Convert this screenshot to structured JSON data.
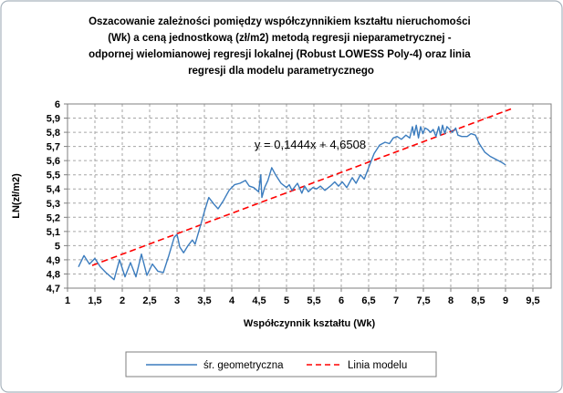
{
  "chart": {
    "title_lines": [
      "Oszacowanie zależności pomiędzy współczynnikiem kształtu nieruchomości",
      "(Wk) a ceną jednostkową (zł/m2) metodą regresji nieparametrycznej -",
      "odpornej wielomianowej regresji lokalnej (Robust LOWESS Poly-4) oraz linia",
      "regresji dla modelu parametrycznego"
    ],
    "annotation": {
      "text": "y = 0,1444x + 4,6508"
    },
    "x_axis": {
      "title": "Współczynnik kształtu (Wk)",
      "tick_values": [
        1,
        1.5,
        2,
        2.5,
        3,
        3.5,
        4,
        4.5,
        5,
        5.5,
        6,
        6.5,
        7,
        7.5,
        8,
        8.5,
        9,
        9.5
      ],
      "tick_labels": [
        "1",
        "1,5",
        "2",
        "2,5",
        "3",
        "3,5",
        "4",
        "4,5",
        "5",
        "5,5",
        "6",
        "6,5",
        "7",
        "7,5",
        "8",
        "8,5",
        "9",
        "9,5"
      ]
    },
    "y_axis": {
      "title": "LN(zł/m2)",
      "tick_values": [
        4.7,
        4.8,
        4.9,
        5.0,
        5.1,
        5.2,
        5.3,
        5.4,
        5.5,
        5.6,
        5.7,
        5.8,
        5.9,
        6.0
      ],
      "tick_labels": [
        "4,7",
        "4,8",
        "4,9",
        "5",
        "5,1",
        "5,2",
        "5,3",
        "5,4",
        "5,5",
        "5,6",
        "5,7",
        "5,8",
        "5,9",
        "6"
      ]
    },
    "legend": {
      "items": [
        {
          "label": "śr. geometryczna",
          "color": "#3B7CBE",
          "style": "solid"
        },
        {
          "label": "Linia modelu",
          "color": "#FF0000",
          "style": "dashed"
        }
      ],
      "position": "bottom-center"
    },
    "colors": {
      "series": "#3B7CBE",
      "model_line": "#FF0000",
      "gridline": "#A6A6A6",
      "plot_border": "#7F7F7F",
      "outer_border": "#A9B4BD",
      "background": "#FFFFFF"
    }
  },
  "chart_data": {
    "type": "line",
    "title": "Oszacowanie zależności pomiędzy współczynnikiem kształtu nieruchomości (Wk) a ceną jednostkową (zł/m2) metodą regresji nieparametrycznej - odpornej wielomianowej regresji lokalnej (Robust LOWESS Poly-4) oraz linia regresji dla modelu parametrycznego",
    "xlabel": "Współczynnik kształtu (Wk)",
    "ylabel": "LN(zł/m2)",
    "xlim": [
      1,
      9.85
    ],
    "ylim": [
      4.7,
      6.0
    ],
    "grid": true,
    "legend_position": "bottom",
    "annotation": "y = 0,1444x + 4,6508",
    "series": [
      {
        "name": "śr. geometryczna",
        "type": "noisy-line",
        "x": [
          1.2,
          1.3,
          1.4,
          1.5,
          1.6,
          1.7,
          1.85,
          1.95,
          2.05,
          2.15,
          2.25,
          2.35,
          2.45,
          2.55,
          2.65,
          2.75,
          2.85,
          2.95,
          3.0,
          3.05,
          3.12,
          3.2,
          3.28,
          3.33,
          3.42,
          3.5,
          3.58,
          3.68,
          3.75,
          3.85,
          3.95,
          4.05,
          4.15,
          4.25,
          4.32,
          4.4,
          4.49,
          4.53,
          4.55,
          4.6,
          4.66,
          4.73,
          4.8,
          4.9,
          5.0,
          5.05,
          5.1,
          5.2,
          5.28,
          5.33,
          5.4,
          5.48,
          5.55,
          5.62,
          5.7,
          5.8,
          5.88,
          5.95,
          6.02,
          6.1,
          6.2,
          6.27,
          6.35,
          6.42,
          6.5,
          6.6,
          6.7,
          6.8,
          6.88,
          6.95,
          7.02,
          7.1,
          7.18,
          7.25,
          7.3,
          7.33,
          7.37,
          7.41,
          7.45,
          7.49,
          7.53,
          7.58,
          7.63,
          7.68,
          7.73,
          7.78,
          7.81,
          7.85,
          7.89,
          7.93,
          7.98,
          8.03,
          8.09,
          8.13,
          8.2,
          8.3,
          8.37,
          8.45,
          8.52,
          8.62,
          8.72,
          8.82,
          8.92,
          9.0
        ],
        "y": [
          4.85,
          4.93,
          4.87,
          4.91,
          4.85,
          4.81,
          4.76,
          4.9,
          4.78,
          4.88,
          4.78,
          4.94,
          4.79,
          4.87,
          4.82,
          4.81,
          4.93,
          5.06,
          5.08,
          4.99,
          4.95,
          5.0,
          5.04,
          5.01,
          5.13,
          5.24,
          5.34,
          5.29,
          5.26,
          5.32,
          5.39,
          5.43,
          5.44,
          5.46,
          5.42,
          5.41,
          5.38,
          5.5,
          5.34,
          5.41,
          5.46,
          5.55,
          5.5,
          5.44,
          5.41,
          5.43,
          5.39,
          5.44,
          5.37,
          5.42,
          5.38,
          5.41,
          5.4,
          5.42,
          5.39,
          5.42,
          5.45,
          5.42,
          5.45,
          5.41,
          5.48,
          5.44,
          5.5,
          5.47,
          5.55,
          5.65,
          5.71,
          5.73,
          5.72,
          5.76,
          5.77,
          5.75,
          5.78,
          5.76,
          5.84,
          5.78,
          5.85,
          5.76,
          5.84,
          5.79,
          5.83,
          5.82,
          5.8,
          5.82,
          5.77,
          5.84,
          5.78,
          5.85,
          5.79,
          5.84,
          5.82,
          5.8,
          5.83,
          5.78,
          5.77,
          5.77,
          5.79,
          5.78,
          5.72,
          5.66,
          5.63,
          5.61,
          5.59,
          5.57
        ]
      },
      {
        "name": "Linia modelu",
        "type": "linear-model",
        "equation": {
          "slope": 0.1444,
          "intercept": 4.6508
        },
        "x_range": [
          1.45,
          9.1
        ]
      }
    ]
  }
}
